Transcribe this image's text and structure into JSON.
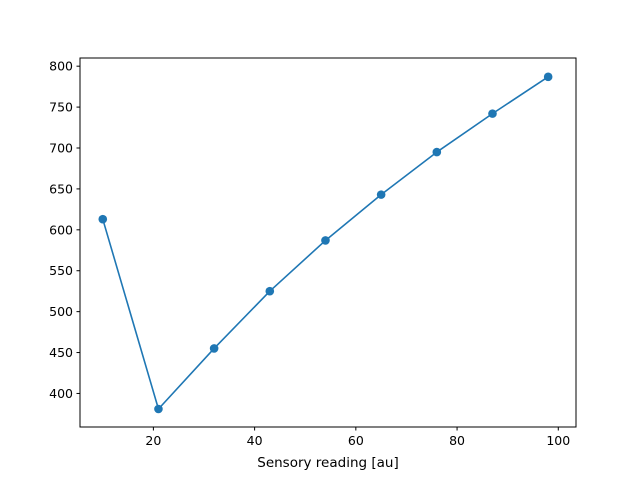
{
  "chart_data": {
    "type": "line",
    "title": "",
    "xlabel": "Sensory reading [au]",
    "ylabel": "",
    "xlim": [
      5.5,
      103.5
    ],
    "ylim": [
      359,
      810
    ],
    "xticks": [
      20,
      40,
      60,
      80,
      100
    ],
    "yticks": [
      400,
      450,
      500,
      550,
      600,
      650,
      700,
      750,
      800
    ],
    "grid": false,
    "legend": "none",
    "series": [
      {
        "color": "#1f77b4",
        "marker": "circle",
        "x": [
          10,
          21,
          32,
          43,
          54,
          65,
          76,
          87,
          98
        ],
        "y": [
          613,
          381,
          455,
          525,
          587,
          643,
          695,
          742,
          787
        ]
      }
    ]
  }
}
